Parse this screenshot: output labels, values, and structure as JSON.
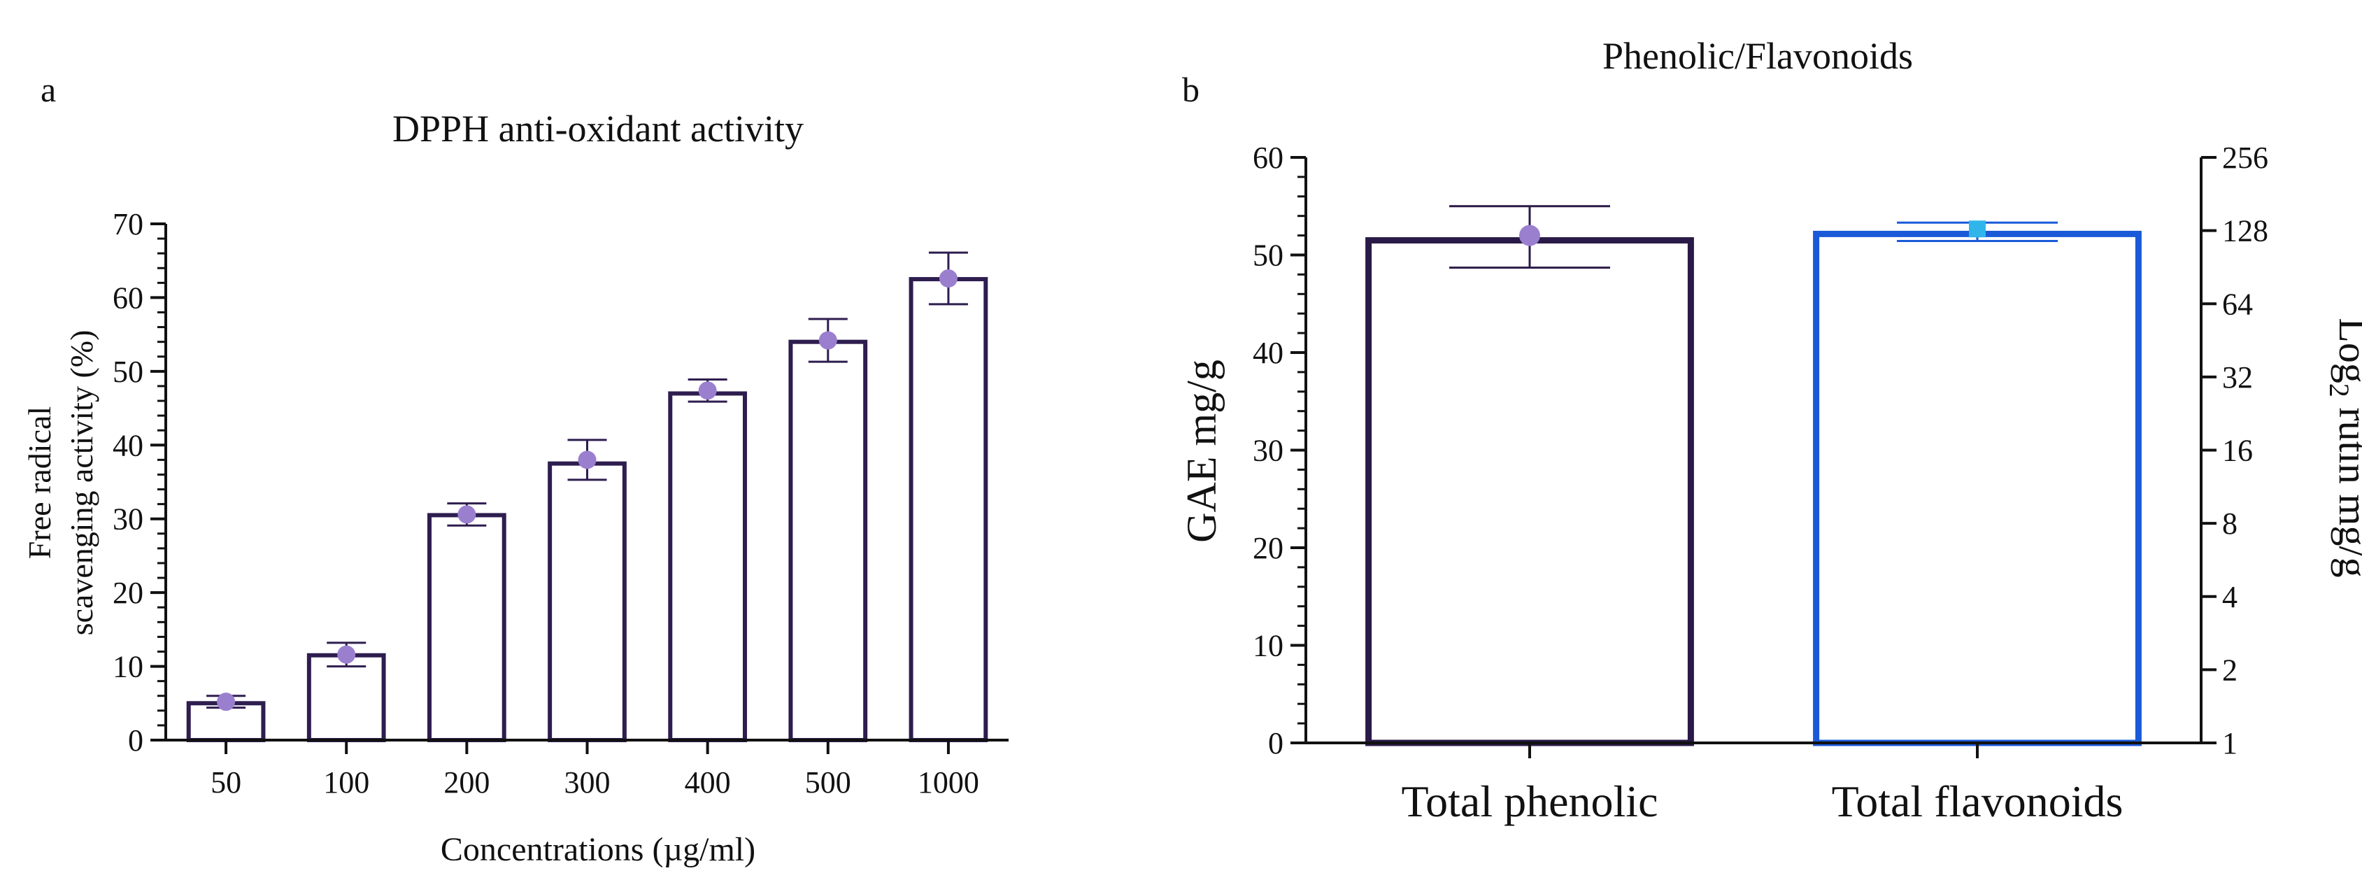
{
  "chart_data": [
    {
      "panel_label": "a",
      "type": "bar",
      "title": "DPPH anti-oxidant activity",
      "xlabel": "Concentrations (µg/ml)",
      "ylabel_lines": [
        "Free radical",
        "scavenging activity (%)"
      ],
      "categories": [
        "50",
        "100",
        "200",
        "300",
        "400",
        "500",
        "1000"
      ],
      "values": [
        5,
        11.5,
        30.5,
        37.5,
        47,
        54,
        62.5
      ],
      "points": [
        5.2,
        11.6,
        30.6,
        38,
        47.4,
        54.2,
        62.6
      ],
      "error": [
        0.8,
        1.6,
        1.5,
        2.7,
        1.5,
        2.9,
        3.5
      ],
      "ylim": [
        0,
        70
      ],
      "yticks": [
        "0",
        "10",
        "20",
        "30",
        "40",
        "50",
        "60",
        "70"
      ],
      "grid": false,
      "colors": {
        "bar_stroke": "#2e1d4f",
        "point": "#9b7fcf",
        "error": "#2e1d4f"
      }
    },
    {
      "panel_label": "b",
      "type": "bar",
      "title": "Phenolic/Flavonoids",
      "xlabel": "",
      "ylabel": "GAE mg/g",
      "ylabel_right_base": "Log",
      "ylabel_right_sub": "2",
      "ylabel_right_rest": " rutin mg/g",
      "categories": [
        "Total phenolic",
        "Total flavonoids"
      ],
      "series": [
        {
          "name": "Total phenolic",
          "axis": "left",
          "value": 51.5,
          "point": 52,
          "error_low": 48.7,
          "error_high": 55,
          "color": "#2a1a47",
          "point_color": "#9b7fcf"
        },
        {
          "name": "Total flavonoids",
          "axis": "right",
          "value": 124,
          "point": 130,
          "error_low": 116,
          "error_high": 138,
          "color": "#1a5ad8",
          "point_color": "#2fb5ea"
        }
      ],
      "ylim": [
        0,
        60
      ],
      "yticks": [
        "0",
        "10",
        "20",
        "30",
        "40",
        "50",
        "60"
      ],
      "ylim_right": [
        1,
        256
      ],
      "yticks_right": [
        "1",
        "2",
        "4",
        "8",
        "16",
        "32",
        "64",
        "128",
        "256"
      ],
      "grid": false
    }
  ]
}
